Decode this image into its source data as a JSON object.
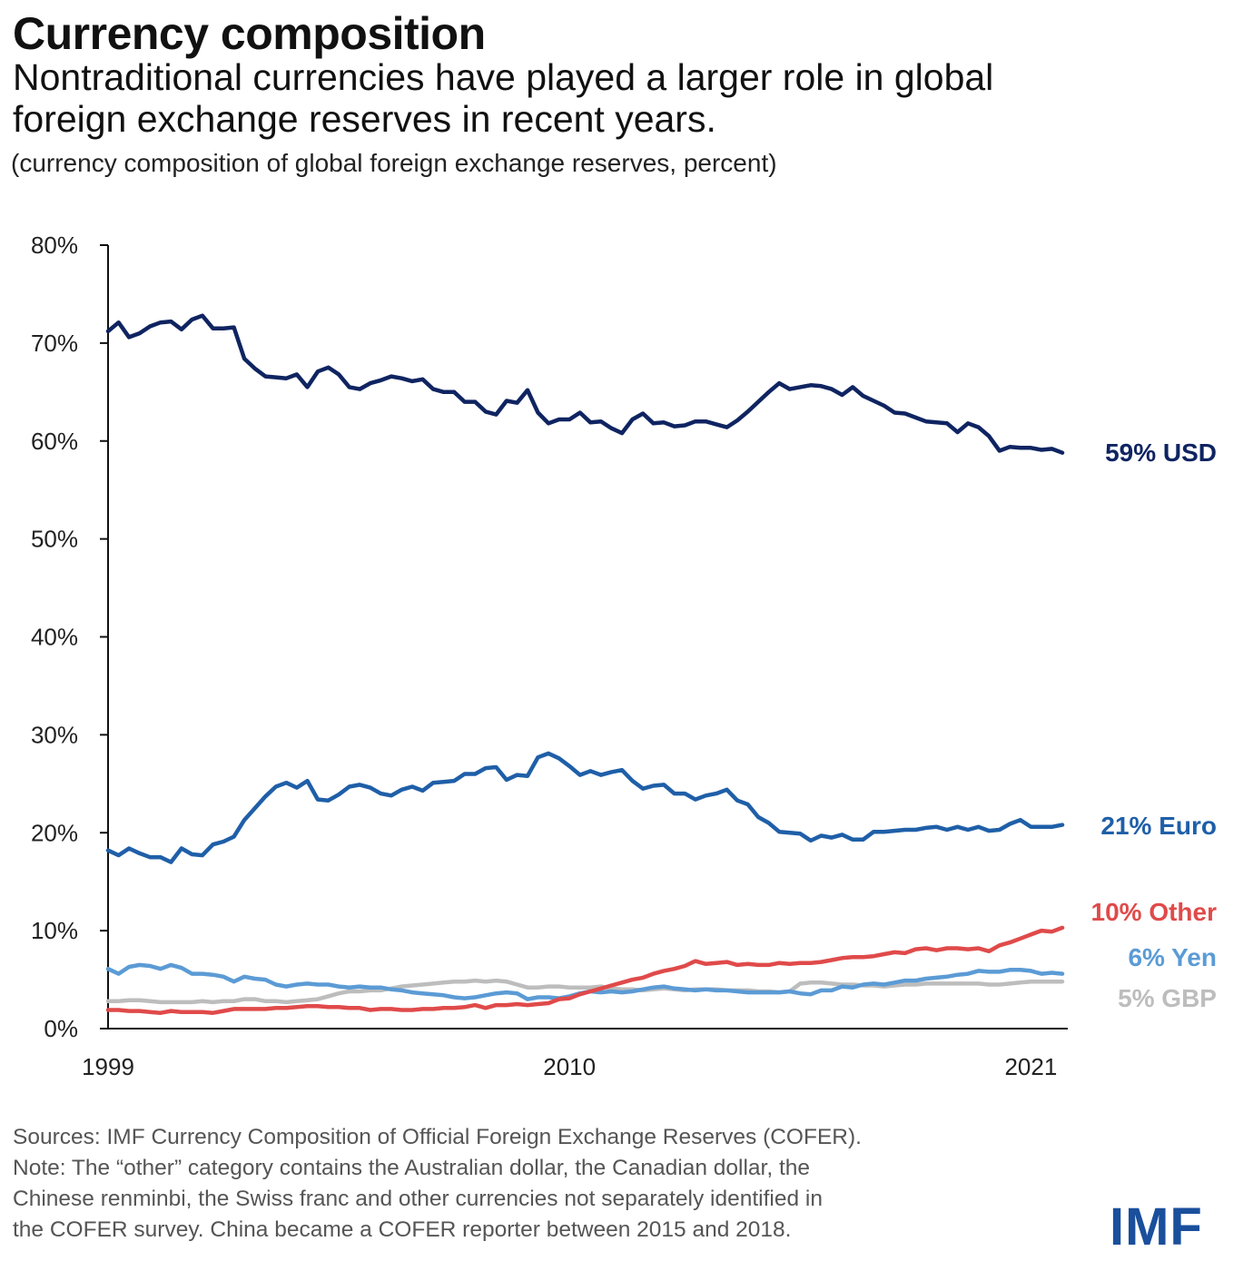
{
  "header": {
    "title": "Currency composition",
    "subtitle_line1": "Nontraditional currencies have played a larger role in global",
    "subtitle_line2": "foreign exchange reserves in recent years.",
    "units": "(currency composition of global foreign exchange reserves, percent)"
  },
  "footer": {
    "line1": "Sources: IMF Currency Composition of Official Foreign Exchange Reserves (COFER).",
    "line2": "Note: The “other” category contains the Australian dollar, the Canadian dollar, the",
    "line3": "Chinese renminbi, the Swiss franc and other currencies not separately identified in",
    "line4": "the COFER survey. China became a COFER reporter between 2015 and 2018.",
    "logo": "IMF"
  },
  "chart_data": {
    "type": "line",
    "title": "Currency composition",
    "ylabel": "",
    "xlabel": "",
    "frequency": "quarterly",
    "x_range": [
      "1999Q1",
      "2021Q4"
    ],
    "ylim": [
      0,
      80
    ],
    "y_ticks": [
      "0%",
      "10%",
      "20%",
      "30%",
      "40%",
      "50%",
      "60%",
      "70%",
      "80%"
    ],
    "x_ticks": [
      {
        "label": "1999",
        "year": 1999
      },
      {
        "label": "2010",
        "year": 2010
      },
      {
        "label": "2021",
        "year": 2021
      }
    ],
    "grid": false,
    "legend": "direct labels at right end of lines",
    "series": [
      {
        "name": "USD",
        "end_label": "59% USD",
        "color": "#0f2461",
        "values": [
          71.2,
          72.1,
          70.6,
          71.0,
          71.7,
          72.1,
          72.2,
          71.4,
          72.4,
          72.8,
          71.5,
          71.5,
          71.6,
          68.4,
          67.4,
          66.6,
          66.5,
          66.4,
          66.8,
          65.5,
          67.1,
          67.5,
          66.8,
          65.5,
          65.3,
          65.9,
          66.2,
          66.6,
          66.4,
          66.1,
          66.3,
          65.3,
          65.0,
          65.0,
          64.0,
          64.0,
          63.0,
          62.7,
          64.1,
          63.9,
          65.2,
          62.9,
          61.8,
          62.2,
          62.2,
          62.9,
          61.9,
          62.0,
          61.3,
          60.8,
          62.2,
          62.8,
          61.8,
          61.9,
          61.5,
          61.6,
          62.0,
          62.0,
          61.7,
          61.4,
          62.1,
          63.0,
          64.0,
          65.0,
          65.9,
          65.3,
          65.5,
          65.7,
          65.6,
          65.3,
          64.7,
          65.5,
          64.6,
          64.1,
          63.6,
          62.9,
          62.8,
          62.4,
          62.0,
          61.9,
          61.8,
          60.9,
          61.8,
          61.4,
          60.5,
          59.0,
          59.4,
          59.3,
          59.3,
          59.1,
          59.2,
          58.8
        ]
      },
      {
        "name": "Euro",
        "end_label": "21% Euro",
        "color": "#1f5fa8",
        "values": [
          18.2,
          17.7,
          18.4,
          17.9,
          17.5,
          17.5,
          17.0,
          18.4,
          17.8,
          17.7,
          18.8,
          19.1,
          19.6,
          21.3,
          22.5,
          23.7,
          24.7,
          25.1,
          24.6,
          25.3,
          23.4,
          23.3,
          23.9,
          24.7,
          24.9,
          24.6,
          24.0,
          23.8,
          24.4,
          24.7,
          24.3,
          25.1,
          25.2,
          25.3,
          26.0,
          26.0,
          26.6,
          26.7,
          25.4,
          25.9,
          25.8,
          27.7,
          28.1,
          27.6,
          26.8,
          25.9,
          26.3,
          25.9,
          26.2,
          26.4,
          25.3,
          24.5,
          24.8,
          24.9,
          24.0,
          24.0,
          23.4,
          23.8,
          24.0,
          24.4,
          23.3,
          22.9,
          21.6,
          21.0,
          20.1,
          20.0,
          19.9,
          19.2,
          19.7,
          19.5,
          19.8,
          19.3,
          19.3,
          20.1,
          20.1,
          20.2,
          20.3,
          20.3,
          20.5,
          20.6,
          20.3,
          20.6,
          20.3,
          20.6,
          20.2,
          20.3,
          20.9,
          21.3,
          20.6,
          20.6,
          20.6,
          20.8
        ]
      },
      {
        "name": "Other",
        "end_label": "10% Other",
        "color": "#e04a4a",
        "values": [
          1.9,
          1.9,
          1.8,
          1.8,
          1.7,
          1.6,
          1.8,
          1.7,
          1.7,
          1.7,
          1.6,
          1.8,
          2.0,
          2.0,
          2.0,
          2.0,
          2.1,
          2.1,
          2.2,
          2.3,
          2.3,
          2.2,
          2.2,
          2.1,
          2.1,
          1.9,
          2.0,
          2.0,
          1.9,
          1.9,
          2.0,
          2.0,
          2.1,
          2.1,
          2.2,
          2.4,
          2.1,
          2.4,
          2.4,
          2.5,
          2.4,
          2.5,
          2.6,
          3.0,
          3.1,
          3.5,
          3.8,
          4.1,
          4.4,
          4.7,
          5.0,
          5.2,
          5.6,
          5.9,
          6.1,
          6.4,
          6.9,
          6.6,
          6.7,
          6.8,
          6.5,
          6.6,
          6.5,
          6.5,
          6.7,
          6.6,
          6.7,
          6.7,
          6.8,
          7.0,
          7.2,
          7.3,
          7.3,
          7.4,
          7.6,
          7.8,
          7.7,
          8.1,
          8.2,
          8.0,
          8.2,
          8.2,
          8.1,
          8.2,
          7.9,
          8.5,
          8.8,
          9.2,
          9.6,
          10.0,
          9.9,
          10.3
        ]
      },
      {
        "name": "Yen",
        "end_label": "6% Yen",
        "color": "#5b9bd5",
        "values": [
          6.1,
          5.6,
          6.3,
          6.5,
          6.4,
          6.1,
          6.5,
          6.2,
          5.6,
          5.6,
          5.5,
          5.3,
          4.8,
          5.3,
          5.1,
          5.0,
          4.5,
          4.3,
          4.5,
          4.6,
          4.5,
          4.5,
          4.3,
          4.2,
          4.3,
          4.2,
          4.2,
          4.0,
          3.9,
          3.7,
          3.6,
          3.5,
          3.4,
          3.2,
          3.1,
          3.2,
          3.4,
          3.6,
          3.7,
          3.6,
          3.0,
          3.2,
          3.2,
          3.1,
          3.3,
          3.6,
          3.8,
          3.7,
          3.8,
          3.7,
          3.8,
          4.0,
          4.2,
          4.3,
          4.1,
          4.0,
          3.9,
          4.0,
          3.9,
          3.9,
          3.8,
          3.7,
          3.7,
          3.7,
          3.7,
          3.8,
          3.6,
          3.5,
          3.9,
          3.9,
          4.3,
          4.2,
          4.5,
          4.6,
          4.5,
          4.7,
          4.9,
          4.9,
          5.1,
          5.2,
          5.3,
          5.5,
          5.6,
          5.9,
          5.8,
          5.8,
          6.0,
          6.0,
          5.9,
          5.6,
          5.7,
          5.6
        ]
      },
      {
        "name": "GBP",
        "end_label": "5% GBP",
        "color": "#bdbdbd",
        "values": [
          2.8,
          2.8,
          2.9,
          2.9,
          2.8,
          2.7,
          2.7,
          2.7,
          2.7,
          2.8,
          2.7,
          2.8,
          2.8,
          3.0,
          3.0,
          2.8,
          2.8,
          2.7,
          2.8,
          2.9,
          3.0,
          3.3,
          3.6,
          3.8,
          3.8,
          3.9,
          3.9,
          4.1,
          4.3,
          4.4,
          4.5,
          4.6,
          4.7,
          4.8,
          4.8,
          4.9,
          4.8,
          4.9,
          4.8,
          4.5,
          4.2,
          4.2,
          4.3,
          4.3,
          4.2,
          4.2,
          4.2,
          4.3,
          4.1,
          4.0,
          4.0,
          3.9,
          4.0,
          4.1,
          4.0,
          3.9,
          4.0,
          4.0,
          4.0,
          3.9,
          3.9,
          3.9,
          3.8,
          3.8,
          3.7,
          3.8,
          4.6,
          4.7,
          4.7,
          4.6,
          4.5,
          4.5,
          4.4,
          4.4,
          4.3,
          4.4,
          4.5,
          4.5,
          4.6,
          4.6,
          4.6,
          4.6,
          4.6,
          4.6,
          4.5,
          4.5,
          4.6,
          4.7,
          4.8,
          4.8,
          4.8,
          4.8
        ]
      }
    ]
  }
}
